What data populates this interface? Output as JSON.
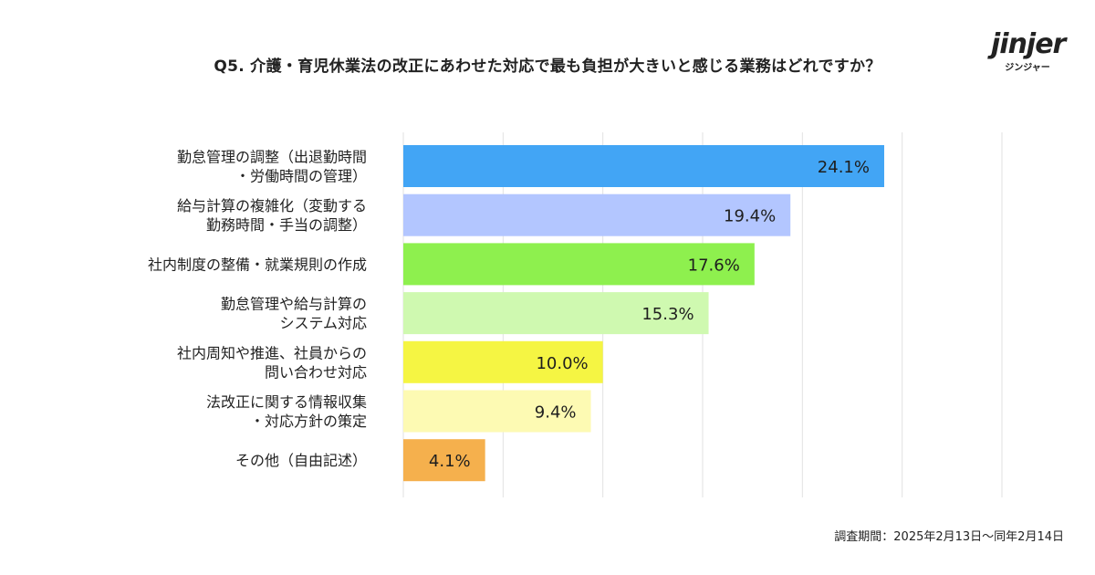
{
  "title": "Q5. 介護・育児休業法の改正にあわせた対応で最も負担が大きいと感じる業務はどれですか？",
  "brand": {
    "wordmark": "jinjer",
    "kana": "ジンジャー"
  },
  "footnote": "調査期間：2025年2月13日〜同年2月14日",
  "chart_data": {
    "type": "bar",
    "orientation": "horizontal",
    "categories": [
      [
        "勤怠管理の調整（出退勤時間",
        "・労働時間の管理）"
      ],
      [
        "給与計算の複雑化（変動する",
        "勤務時間・手当の調整）"
      ],
      [
        "社内制度の整備・就業規則の作成"
      ],
      [
        "勤怠管理や給与計算の",
        "システム対応"
      ],
      [
        "社内周知や推進、社員からの",
        "問い合わせ対応"
      ],
      [
        "法改正に関する情報収集",
        "・対応方針の策定"
      ],
      [
        "その他（自由記述）"
      ]
    ],
    "values": [
      24.1,
      19.4,
      17.6,
      15.3,
      10.0,
      9.4,
      4.1
    ],
    "data_labels": [
      "24.1%",
      "19.4%",
      "17.6%",
      "15.3%",
      "10.0%",
      "9.4%",
      "4.1%"
    ],
    "colors": [
      "#42a5f5",
      "#b3c6ff",
      "#8ef04e",
      "#cff9b0",
      "#f5f543",
      "#fdfab3",
      "#f5b04d"
    ],
    "xlim": [
      0,
      30
    ],
    "grid": true,
    "xlabel": "",
    "ylabel": ""
  }
}
